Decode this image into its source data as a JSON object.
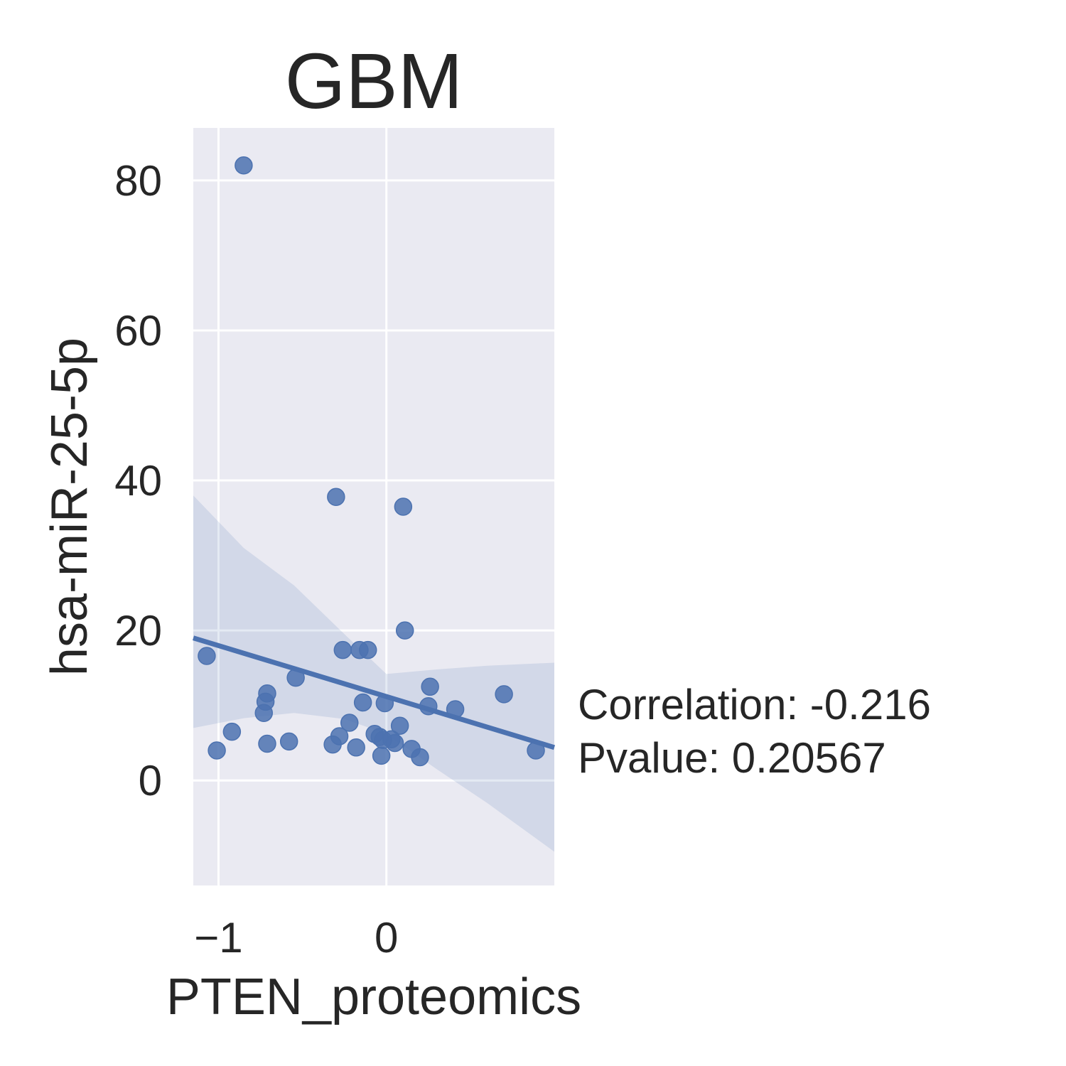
{
  "chart_data": {
    "type": "scatter",
    "title": "GBM",
    "xlabel": "PTEN_proteomics",
    "ylabel": "hsa-miR-25-5p",
    "xlim": [
      -1.15,
      1.0
    ],
    "ylim": [
      -14,
      87
    ],
    "xticks": [
      -1,
      0
    ],
    "xtick_labels": [
      "−1",
      "0"
    ],
    "yticks": [
      0,
      20,
      40,
      60,
      80
    ],
    "ytick_labels": [
      "0",
      "20",
      "40",
      "60",
      "80"
    ],
    "grid": true,
    "points": [
      {
        "x": -0.85,
        "y": 82.0
      },
      {
        "x": -0.3,
        "y": 37.8
      },
      {
        "x": 0.1,
        "y": 36.5
      },
      {
        "x": 0.11,
        "y": 20.0
      },
      {
        "x": -0.26,
        "y": 17.4
      },
      {
        "x": -0.16,
        "y": 17.4
      },
      {
        "x": -0.11,
        "y": 17.4
      },
      {
        "x": -1.07,
        "y": 16.6
      },
      {
        "x": -0.54,
        "y": 13.7
      },
      {
        "x": 0.26,
        "y": 12.5
      },
      {
        "x": 0.7,
        "y": 11.5
      },
      {
        "x": -0.71,
        "y": 11.6
      },
      {
        "x": -0.72,
        "y": 10.5
      },
      {
        "x": -0.14,
        "y": 10.4
      },
      {
        "x": -0.01,
        "y": 10.3
      },
      {
        "x": 0.25,
        "y": 9.9
      },
      {
        "x": 0.41,
        "y": 9.5
      },
      {
        "x": -0.73,
        "y": 9.0
      },
      {
        "x": -0.22,
        "y": 7.7
      },
      {
        "x": 0.08,
        "y": 7.3
      },
      {
        "x": -0.92,
        "y": 6.5
      },
      {
        "x": -0.28,
        "y": 5.9
      },
      {
        "x": -0.07,
        "y": 6.2
      },
      {
        "x": -0.04,
        "y": 5.8
      },
      {
        "x": -0.02,
        "y": 5.4
      },
      {
        "x": 0.03,
        "y": 5.5
      },
      {
        "x": -0.58,
        "y": 5.2
      },
      {
        "x": -0.71,
        "y": 4.9
      },
      {
        "x": -0.32,
        "y": 4.8
      },
      {
        "x": 0.05,
        "y": 5.0
      },
      {
        "x": -0.18,
        "y": 4.4
      },
      {
        "x": -1.01,
        "y": 4.0
      },
      {
        "x": 0.15,
        "y": 4.2
      },
      {
        "x": 0.89,
        "y": 4.0
      },
      {
        "x": -0.03,
        "y": 3.3
      },
      {
        "x": 0.2,
        "y": 3.1
      }
    ],
    "regression": {
      "x": [
        -1.15,
        1.0
      ],
      "y": [
        19.0,
        4.4
      ]
    },
    "ci_band": {
      "x": [
        -1.15,
        -0.85,
        -0.55,
        -0.25,
        0.0,
        0.3,
        0.6,
        1.0
      ],
      "upper": [
        38.0,
        31.0,
        26.0,
        19.5,
        14.2,
        14.8,
        15.3,
        15.7
      ],
      "lower": [
        7.0,
        8.3,
        9.0,
        8.2,
        6.2,
        1.5,
        -3.0,
        -9.5
      ]
    },
    "colors": {
      "points": "#4c72b0",
      "line": "#4c72b0",
      "band": "#4c72b0",
      "axes_bg": "#eaeaf2",
      "grid": "#ffffff"
    }
  },
  "annotation": {
    "correlation": "Correlation: -0.216",
    "pvalue": "Pvalue: 0.20567"
  }
}
